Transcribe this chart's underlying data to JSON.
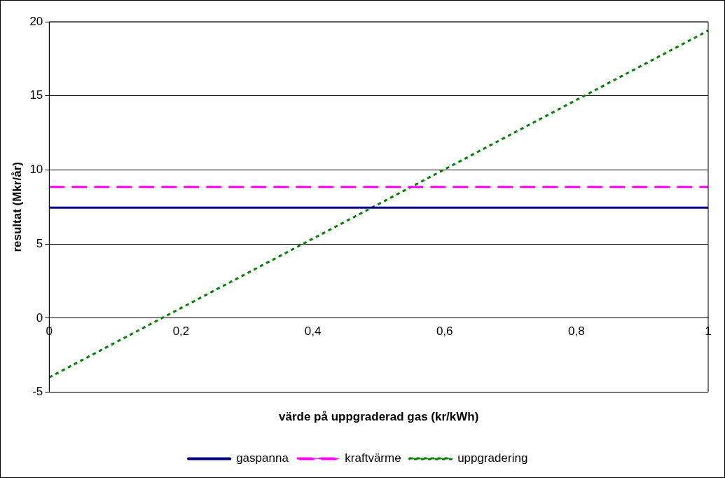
{
  "chart_data": {
    "type": "line",
    "xlabel": "värde på uppgraderad gas (kr/kWh)",
    "ylabel": "resultat (Mkr/år)",
    "xlim": [
      0,
      1
    ],
    "xticks": [
      0,
      {
        "value": 0.2,
        "label": "0,2"
      },
      {
        "value": 0.4,
        "label": "0,4"
      },
      {
        "value": 0.6,
        "label": "0,6"
      },
      {
        "value": 0.8,
        "label": "0,8"
      },
      1
    ],
    "ylim": [
      -5,
      20
    ],
    "yticks": [
      -5,
      0,
      5,
      10,
      15,
      20
    ],
    "grid": "y",
    "legend": "bottom",
    "marker": "none",
    "x": [
      0,
      1
    ],
    "series": [
      {
        "name": "gaspanna",
        "color": "#000080",
        "values": [
          7.45,
          7.45
        ],
        "line_style": "solid"
      },
      {
        "name": "kraftvärme",
        "color": "#ff00ff",
        "values": [
          8.85,
          8.85
        ],
        "line_style": "dashed"
      },
      {
        "name": "uppgradering",
        "color": "#008000",
        "values": [
          -4,
          19.4
        ],
        "line_style": "dotted"
      }
    ]
  }
}
